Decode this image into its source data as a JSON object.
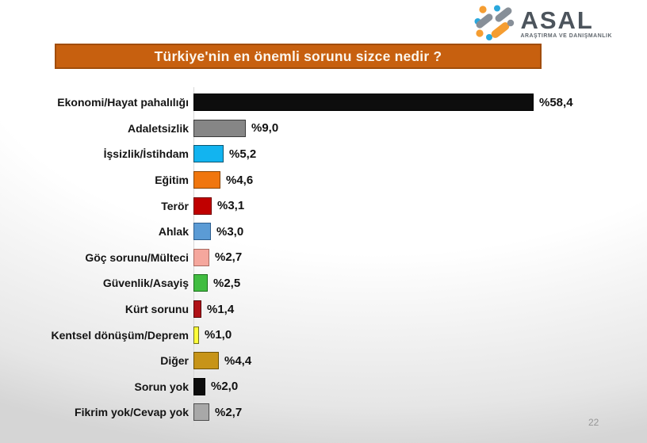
{
  "logo": {
    "name": "ASAL",
    "subtitle": "ARAŞTIRMA VE DANIŞMANLIK",
    "mark_colors": {
      "orange": "#f59d31",
      "gray": "#878f98",
      "blue": "#2aa8dd"
    }
  },
  "slide": {
    "title": "Türkiye'nin en önemli sorunu sizce nedir ?",
    "title_bg": "#c7600f",
    "title_border": "#a14d0b",
    "page_number": "22"
  },
  "chart_data": {
    "type": "bar",
    "orientation": "horizontal",
    "title": "Türkiye'nin en önemli sorunu sizce nedir ?",
    "xlabel": "",
    "ylabel": "",
    "xlim": [
      0,
      60
    ],
    "grid": false,
    "value_label_position": "end",
    "categories": [
      "Ekonomi/Hayat pahalılığı",
      "Adaletsizlik",
      "İşsizlik/İstihdam",
      "Eğitim",
      "Terör",
      "Ahlak",
      "Göç sorunu/Mülteci",
      "Güvenlik/Asayiş",
      "Kürt sorunu",
      "Kentsel dönüşüm/Deprem",
      "Diğer",
      "Sorun yok",
      "Fikrim yok/Cevap yok"
    ],
    "values": [
      58.4,
      9.0,
      5.2,
      4.6,
      3.1,
      3.0,
      2.7,
      2.5,
      1.4,
      1.0,
      4.4,
      2.0,
      2.7
    ],
    "value_labels": [
      "%58,4",
      "%9,0",
      "%5,2",
      "%4,6",
      "%3,1",
      "%3,0",
      "%2,7",
      "%2,5",
      "%1,4",
      "%1,0",
      "%4,4",
      "%2,0",
      "%2,7"
    ],
    "bar_colors": [
      "#0d0d0d",
      "#868686",
      "#12b4f0",
      "#f0760e",
      "#c00000",
      "#5b9bd5",
      "#f5a79d",
      "#41bd41",
      "#b01117",
      "#fdfd3a",
      "#c79418",
      "#0d0d0d",
      "#a8a8a8"
    ],
    "bar_border_colors": [
      "#000000",
      "#3a3a3a",
      "#0b5570",
      "#8a4503",
      "#700000",
      "#2e5f8f",
      "#a96b61",
      "#1c6e1c",
      "#550a0d",
      "#70701c",
      "#6e5206",
      "#000000",
      "#4d4d4d"
    ]
  }
}
